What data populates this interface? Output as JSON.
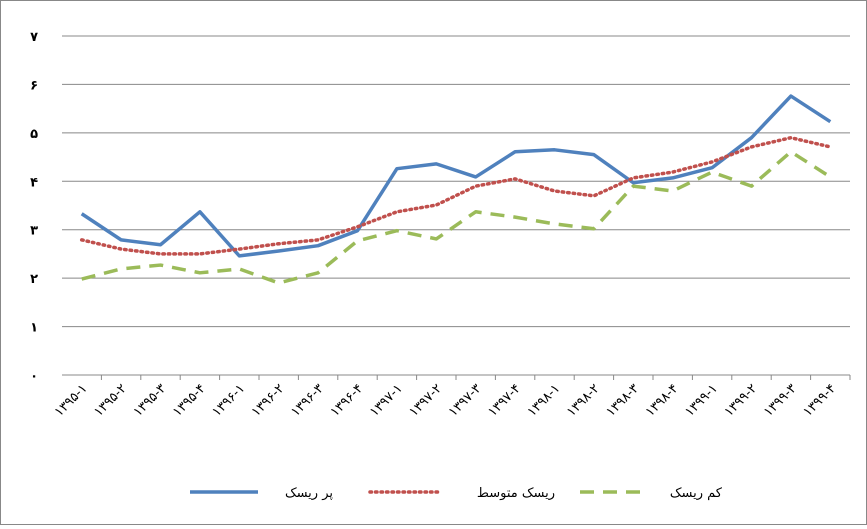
{
  "chart_data": {
    "type": "line",
    "categories": [
      "۱۳۹۵-۱",
      "۱۳۹۵-۲",
      "۱۳۹۵-۳",
      "۱۳۹۵-۴",
      "۱۳۹۶-۱",
      "۱۳۹۶-۲",
      "۱۳۹۶-۳",
      "۱۳۹۶-۴",
      "۱۳۹۷-۱",
      "۱۳۹۷-۲",
      "۱۳۹۷-۳",
      "۱۳۹۷-۴",
      "۱۳۹۸-۱",
      "۱۳۹۸-۲",
      "۱۳۹۸-۳",
      "۱۳۹۸-۴",
      "۱۳۹۹-۱",
      "۱۳۹۹-۲",
      "۱۳۹۹-۳",
      "۱۳۹۹-۴"
    ],
    "series": [
      {
        "name": "پر ریسک",
        "color": "#4f81bd",
        "dash": "solid",
        "values": [
          3.33,
          2.79,
          2.69,
          3.37,
          2.46,
          2.56,
          2.67,
          2.98,
          4.26,
          4.36,
          4.09,
          4.61,
          4.65,
          4.55,
          3.97,
          4.07,
          4.28,
          4.9,
          5.76,
          5.23
        ]
      },
      {
        "name": "ریسک متوسط",
        "color": "#c0504d",
        "dash": "dotted",
        "values": [
          2.79,
          2.6,
          2.5,
          2.5,
          2.6,
          2.71,
          2.79,
          3.06,
          3.37,
          3.51,
          3.9,
          4.05,
          3.8,
          3.7,
          4.07,
          4.19,
          4.4,
          4.71,
          4.9,
          4.71
        ]
      },
      {
        "name": "کم ریسک",
        "color": "#9bbb59",
        "dash": "dashed",
        "values": [
          1.98,
          2.19,
          2.27,
          2.11,
          2.19,
          1.9,
          2.11,
          2.77,
          2.98,
          2.81,
          3.37,
          3.26,
          3.12,
          3.02,
          3.9,
          3.8,
          4.19,
          3.9,
          4.61,
          4.09
        ]
      }
    ],
    "ylim": [
      0,
      7
    ],
    "yticks": [
      {
        "value": 0,
        "label": "۰"
      },
      {
        "value": 1,
        "label": "۱"
      },
      {
        "value": 2,
        "label": "۲"
      },
      {
        "value": 3,
        "label": "۳"
      },
      {
        "value": 4,
        "label": "۴"
      },
      {
        "value": 5,
        "label": "۵"
      },
      {
        "value": 6,
        "label": "۶"
      },
      {
        "value": 7,
        "label": "۷"
      }
    ],
    "grid": true,
    "legend": "bottom"
  }
}
